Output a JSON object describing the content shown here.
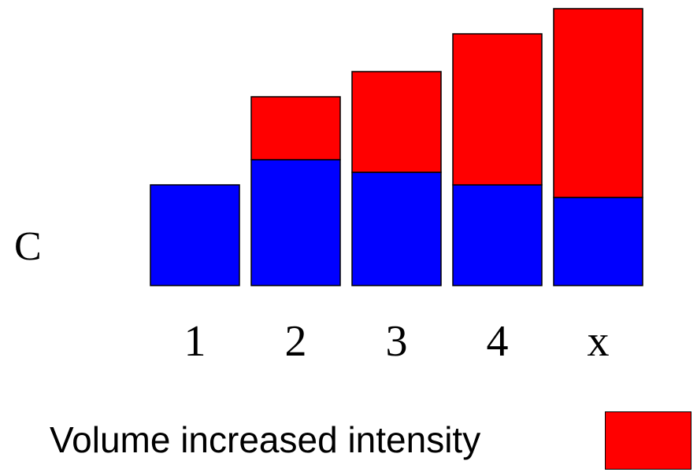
{
  "panel_label": "C",
  "legend": {
    "label": "Volume increased intensity",
    "color": "#ff0000"
  },
  "chart_data": {
    "type": "bar",
    "stacked": true,
    "categories": [
      "1",
      "2",
      "3",
      "4",
      "x"
    ],
    "series": [
      {
        "values": [
          40,
          50,
          45,
          40,
          35
        ],
        "color": "#0000ff"
      },
      {
        "values": [
          0,
          25,
          40,
          60,
          75
        ],
        "color": "#ff0000"
      }
    ],
    "title": "",
    "xlabel": "",
    "ylabel": "",
    "ylim": [
      0,
      110
    ],
    "grid": false,
    "legend_position": "bottom-right"
  }
}
